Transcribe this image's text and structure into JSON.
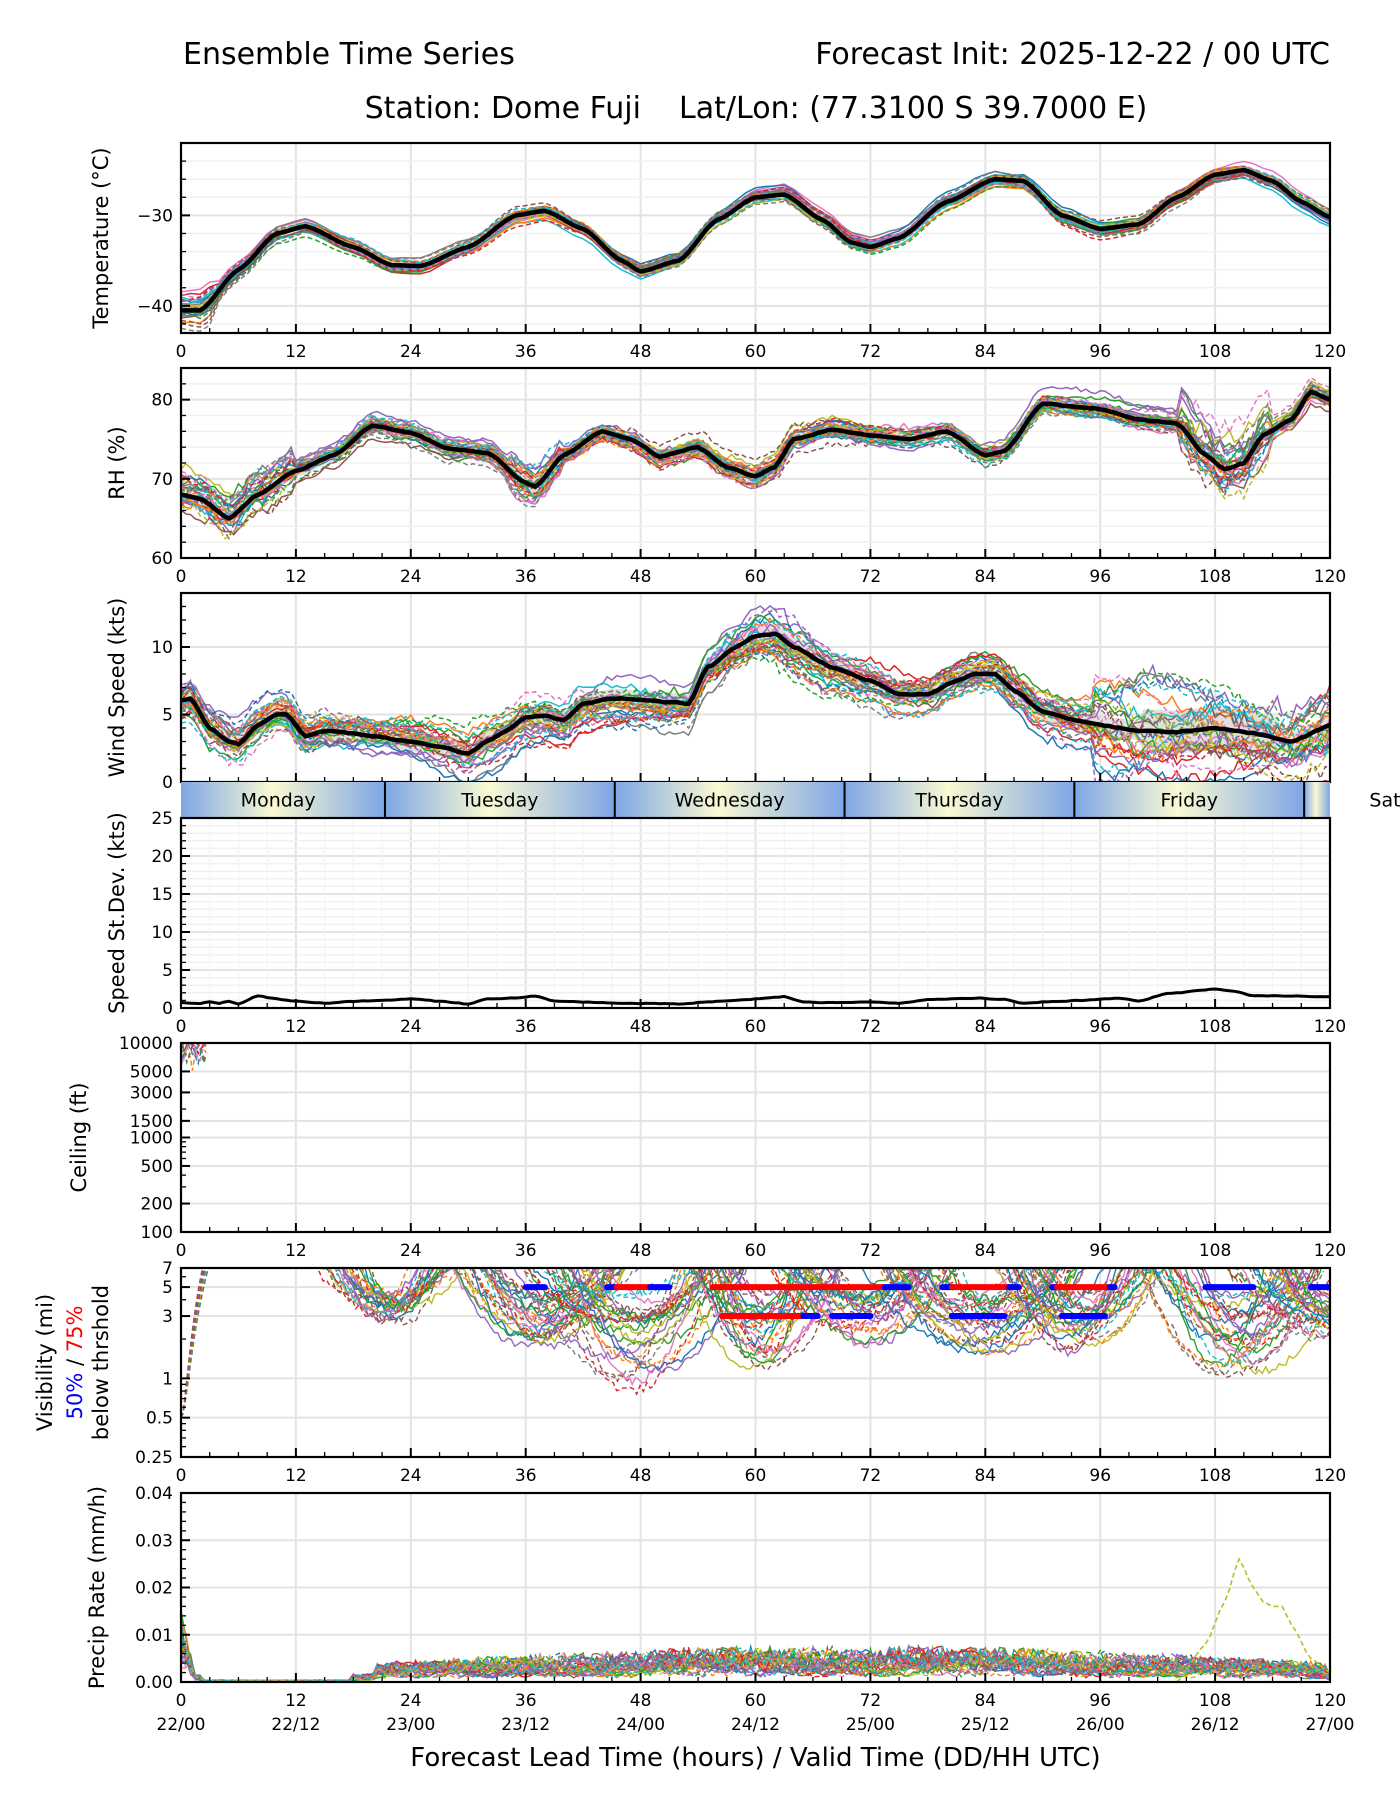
{
  "header": {
    "title_left": "Ensemble Time Series",
    "title_right": "Forecast Init: 2025-12-22 / 00 UTC",
    "subtitle": "Station: Dome Fuji    Lat/Lon: (77.3100 S 39.7000 E)"
  },
  "chart_data": [
    {
      "id": "temperature",
      "type": "line",
      "ylabel": "Temperature (°C)",
      "ylim": [
        -43,
        -22
      ],
      "yticks": [
        -40,
        -30
      ],
      "yticklabels": [
        "−40",
        "−30"
      ],
      "xlim": [
        0,
        120
      ],
      "xticks": [
        0,
        12,
        24,
        36,
        48,
        60,
        72,
        84,
        96,
        108,
        120
      ],
      "grid": true,
      "ensemble_members": 30,
      "mean_series": {
        "x": [
          0,
          2,
          6,
          10,
          13,
          18,
          22,
          25,
          30,
          35,
          38,
          42,
          46,
          48,
          52,
          56,
          60,
          63,
          67,
          70,
          72,
          75,
          80,
          85,
          88,
          92,
          96,
          100,
          104,
          108,
          111,
          114,
          117,
          120
        ],
        "y": [
          -40.5,
          -40.5,
          -36,
          -32,
          -31.2,
          -33.5,
          -35.5,
          -35.6,
          -33.5,
          -30,
          -29.5,
          -31.5,
          -35,
          -36.2,
          -35,
          -30.5,
          -28,
          -27.7,
          -30.5,
          -33,
          -33.5,
          -32.5,
          -28.5,
          -26,
          -26.2,
          -30,
          -31.5,
          -31,
          -28,
          -25.5,
          -25,
          -26.2,
          -28.5,
          -30.2
        ]
      }
    },
    {
      "id": "rh",
      "type": "line",
      "ylabel": "RH (%)",
      "ylim": [
        60,
        84
      ],
      "yticks": [
        60,
        70,
        80
      ],
      "yticklabels": [
        "60",
        "70",
        "80"
      ],
      "xlim": [
        0,
        120
      ],
      "xticks": [
        0,
        12,
        24,
        36,
        48,
        60,
        72,
        84,
        96,
        108,
        120
      ],
      "grid": true,
      "ensemble_members": 30,
      "mean_series": {
        "x": [
          0,
          2,
          5,
          8,
          12,
          16,
          20,
          24,
          28,
          32,
          36,
          37,
          40,
          44,
          47,
          50,
          54,
          57,
          60,
          62,
          64,
          68,
          72,
          76,
          80,
          84,
          86,
          90,
          96,
          100,
          104,
          107,
          109,
          111,
          113,
          116,
          118,
          120
        ],
        "y": [
          68,
          67.5,
          65,
          68,
          71,
          73,
          76.7,
          75.8,
          73.8,
          73.3,
          69.5,
          69,
          73,
          76,
          75,
          72.8,
          74,
          71.5,
          70.3,
          71.5,
          75,
          76.2,
          75.5,
          75,
          76,
          73,
          73.5,
          79.5,
          78.8,
          77.5,
          77,
          73,
          71.2,
          72,
          75.5,
          77.5,
          81,
          80
        ]
      }
    },
    {
      "id": "wind_speed",
      "type": "line",
      "ylabel": "Wind Speed (kts)",
      "ylim": [
        0,
        14
      ],
      "yticks": [
        0,
        5,
        10
      ],
      "yticklabels": [
        "0",
        "5",
        "10"
      ],
      "xlim": [
        0,
        120
      ],
      "xticks": [
        0,
        12,
        24,
        36,
        48,
        60,
        72,
        84,
        96,
        108,
        120
      ],
      "grid": true,
      "ensemble_members": 30,
      "mean_series": {
        "x": [
          0,
          1,
          3,
          5,
          6,
          8,
          10,
          11,
          13,
          15,
          18,
          20,
          24,
          27,
          30,
          32,
          34,
          36,
          38,
          40,
          42,
          45,
          48,
          51,
          53,
          55,
          58,
          60,
          62,
          64,
          68,
          72,
          75,
          78,
          81,
          83,
          85,
          87,
          90,
          94,
          98,
          100,
          104,
          108,
          112,
          116,
          120
        ],
        "y": [
          6,
          6.2,
          4,
          3,
          2.8,
          4.2,
          5,
          5,
          3.4,
          3.8,
          3.6,
          3.4,
          3,
          2.6,
          2.1,
          3,
          3.8,
          4.8,
          4.9,
          4.6,
          5.8,
          6.2,
          6.1,
          5.9,
          5.8,
          8.5,
          10,
          10.8,
          11,
          10,
          8.5,
          7.5,
          6.5,
          6.5,
          7.5,
          8,
          8,
          6.8,
          5.2,
          4.5,
          4,
          3.8,
          3.7,
          4,
          3.6,
          3,
          4.2
        ]
      }
    },
    {
      "id": "day_band",
      "type": "table",
      "labels": [
        "Monday",
        "Tuesday",
        "Wednesday",
        "Thursday",
        "Friday",
        "Sat"
      ],
      "day_boundaries_hours": [
        0,
        21.3,
        45.3,
        69.3,
        93.3,
        117.3
      ],
      "colors": {
        "edge": "#7ea6e6",
        "center": "#fafad2"
      }
    },
    {
      "id": "speed_stdev",
      "type": "line",
      "ylabel": "Speed St.Dev. (kts)",
      "ylim": [
        0,
        25
      ],
      "yticks": [
        0,
        5,
        10,
        15,
        20,
        25
      ],
      "yticklabels": [
        "0",
        "5",
        "10",
        "15",
        "20",
        "25"
      ],
      "xlim": [
        0,
        120
      ],
      "xticks": [
        0,
        12,
        24,
        36,
        48,
        60,
        72,
        84,
        96,
        108,
        120
      ],
      "grid": true,
      "series": [
        {
          "name": "stdev",
          "x": [
            0,
            2,
            3,
            4,
            5,
            6,
            8,
            10,
            12,
            15,
            18,
            21,
            24,
            27,
            30,
            32,
            35,
            37,
            39,
            42,
            46,
            50,
            52,
            55,
            58,
            61,
            63,
            65,
            68,
            72,
            75,
            78,
            80,
            83,
            86,
            88,
            90,
            94,
            98,
            100,
            103,
            108,
            110,
            112,
            115,
            120
          ],
          "y": [
            0.7,
            0.6,
            0.8,
            0.6,
            0.9,
            0.5,
            1.6,
            1.2,
            0.9,
            0.6,
            0.9,
            1.0,
            1.2,
            0.9,
            0.5,
            1.2,
            1.3,
            1.6,
            0.9,
            0.8,
            0.6,
            0.6,
            0.5,
            0.8,
            1.0,
            1.3,
            1.5,
            0.8,
            0.7,
            0.8,
            0.6,
            1.1,
            1.2,
            1.3,
            1.1,
            0.6,
            0.8,
            1.0,
            1.3,
            0.9,
            1.9,
            2.5,
            2.2,
            1.6,
            1.6,
            1.5
          ]
        }
      ]
    },
    {
      "id": "ceiling",
      "type": "line",
      "ylabel": "Ceiling (ft)",
      "yscale": "log",
      "ylim": [
        100,
        10000
      ],
      "yticks": [
        100,
        200,
        500,
        1000,
        1500,
        3000,
        5000,
        10000
      ],
      "yticklabels": [
        "100",
        "200",
        "500",
        "1000",
        "1500",
        "3000",
        "5000",
        "10000"
      ],
      "xlim": [
        0,
        120
      ],
      "xticks": [
        0,
        12,
        24,
        36,
        48,
        60,
        72,
        84,
        96,
        108,
        120
      ],
      "grid": true,
      "note": "Only a few ensemble members show ceilings between ~4500 and 10000 ft during hours 0-2"
    },
    {
      "id": "visibility",
      "type": "line",
      "ylabel_lines": [
        "Visibility (mi)",
        "50% / 75%",
        "below thrshold"
      ],
      "ylabel_colors": {
        "p50": "#0000ff",
        "p75": "#ff0000"
      },
      "yscale": "log",
      "ylim": [
        0.25,
        7
      ],
      "yticks": [
        0.25,
        0.5,
        1,
        3,
        5,
        7
      ],
      "yticklabels": [
        "0.25",
        "0.5",
        "1",
        "3",
        "5",
        "7"
      ],
      "xlim": [
        0,
        120
      ],
      "xticks": [
        0,
        12,
        24,
        36,
        48,
        60,
        72,
        84,
        96,
        108,
        120
      ],
      "grid": true,
      "threshold_bars": [
        {
          "level_mi": 5,
          "percentile": 50,
          "x_start": 36,
          "x_end": 38
        },
        {
          "level_mi": 5,
          "percentile": 50,
          "x_start": 44.5,
          "x_end": 45.5
        },
        {
          "level_mi": 5,
          "percentile": 75,
          "x_start": 45.5,
          "x_end": 49
        },
        {
          "level_mi": 5,
          "percentile": 50,
          "x_start": 49,
          "x_end": 51
        },
        {
          "level_mi": 5,
          "percentile": 75,
          "x_start": 55.5,
          "x_end": 73.5
        },
        {
          "level_mi": 5,
          "percentile": 50,
          "x_start": 73.5,
          "x_end": 76
        },
        {
          "level_mi": 5,
          "percentile": 50,
          "x_start": 79.5,
          "x_end": 80.5
        },
        {
          "level_mi": 5,
          "percentile": 75,
          "x_start": 80.5,
          "x_end": 86.5
        },
        {
          "level_mi": 5,
          "percentile": 50,
          "x_start": 86.5,
          "x_end": 87.5
        },
        {
          "level_mi": 5,
          "percentile": 50,
          "x_start": 91,
          "x_end": 91.5
        },
        {
          "level_mi": 5,
          "percentile": 75,
          "x_start": 91.5,
          "x_end": 97
        },
        {
          "level_mi": 5,
          "percentile": 50,
          "x_start": 97,
          "x_end": 97.5
        },
        {
          "level_mi": 5,
          "percentile": 50,
          "x_start": 107,
          "x_end": 112
        },
        {
          "level_mi": 5,
          "percentile": 50,
          "x_start": 118,
          "x_end": 120
        },
        {
          "level_mi": 3,
          "percentile": 75,
          "x_start": 56.5,
          "x_end": 65
        },
        {
          "level_mi": 3,
          "percentile": 50,
          "x_start": 65,
          "x_end": 66.5
        },
        {
          "level_mi": 3,
          "percentile": 50,
          "x_start": 68,
          "x_end": 72
        },
        {
          "level_mi": 3,
          "percentile": 50,
          "x_start": 80.5,
          "x_end": 86
        },
        {
          "level_mi": 3,
          "percentile": 50,
          "x_start": 92,
          "x_end": 96.5
        }
      ],
      "low_dips": [
        {
          "x_center": 22,
          "min_mi": 2.6
        },
        {
          "x_center": 38,
          "min_mi": 1.7
        },
        {
          "x_center": 47.5,
          "min_mi": 0.8
        },
        {
          "x_center": 61,
          "min_mi": 1.2
        },
        {
          "x_center": 71,
          "min_mi": 1.8
        },
        {
          "x_center": 84,
          "min_mi": 1.6
        },
        {
          "x_center": 94,
          "min_mi": 1.6
        },
        {
          "x_center": 110.5,
          "min_mi": 1.05
        },
        {
          "x_center": 120,
          "min_mi": 2.0
        }
      ]
    },
    {
      "id": "precip_rate",
      "type": "line",
      "ylabel": "Precip Rate (mm/h)",
      "ylim": [
        0,
        0.04
      ],
      "yticks": [
        0,
        0.01,
        0.02,
        0.03,
        0.04
      ],
      "yticklabels": [
        "0.00",
        "0.01",
        "0.02",
        "0.03",
        "0.04"
      ],
      "xlim": [
        0,
        120
      ],
      "xticks": [
        0,
        12,
        24,
        36,
        48,
        60,
        72,
        84,
        96,
        108,
        120
      ],
      "xticklabels_secondary": [
        "22/00",
        "22/12",
        "23/00",
        "23/12",
        "24/00",
        "24/12",
        "25/00",
        "25/12",
        "26/00",
        "26/12",
        "27/00"
      ],
      "xlabel": "Forecast Lead Time (hours) / Valid Time (DD/HH UTC)",
      "grid": true,
      "notable_member": {
        "x": [
          104,
          107,
          109,
          110.5,
          112,
          113,
          114,
          115,
          116,
          118,
          120
        ],
        "y": [
          0.0,
          0.008,
          0.017,
          0.026,
          0.02,
          0.017,
          0.016,
          0.016,
          0.012,
          0.005,
          0.002
        ]
      }
    }
  ]
}
